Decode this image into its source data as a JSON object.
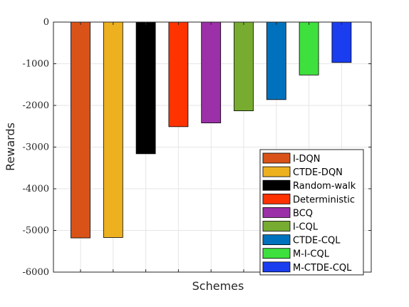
{
  "chart_data": {
    "type": "bar",
    "title": "",
    "xlabel": "Schemes",
    "ylabel": "Rewards",
    "ylim": [
      -6000,
      0
    ],
    "yticks": [
      0,
      -1000,
      -2000,
      -3000,
      -4000,
      -5000,
      -6000
    ],
    "grid": true,
    "legend_position": "bottom-right",
    "series": [
      {
        "name": "I-DQN",
        "value": -5180,
        "color": "#D95319"
      },
      {
        "name": "CTDE-DQN",
        "value": -5170,
        "color": "#EDB120"
      },
      {
        "name": "Random-walk",
        "value": -3160,
        "color": "#000000"
      },
      {
        "name": "Deterministic",
        "value": -2510,
        "color": "#FF3300"
      },
      {
        "name": "BCQ",
        "value": -2420,
        "color": "#9B30A8"
      },
      {
        "name": "I-CQL",
        "value": -2130,
        "color": "#77AC30"
      },
      {
        "name": "CTDE-CQL",
        "value": -1860,
        "color": "#0072BD"
      },
      {
        "name": "M-I-CQL",
        "value": -1270,
        "color": "#3EE03E"
      },
      {
        "name": "M-CTDE-CQL",
        "value": -970,
        "color": "#1A3DF0"
      }
    ]
  }
}
